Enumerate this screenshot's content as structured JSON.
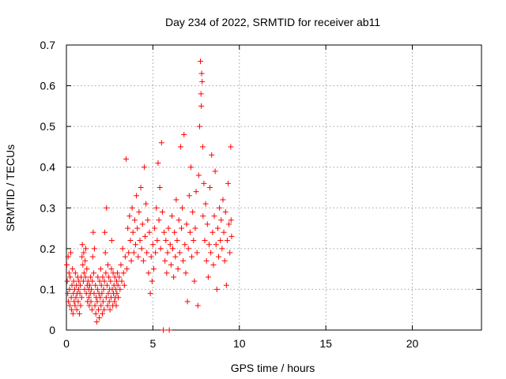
{
  "chart_data": {
    "type": "scatter",
    "title": "Day 234 of 2022, SRMTID for receiver ab11",
    "xlabel": "GPS time / hours",
    "ylabel": "SRMTID / TECUs",
    "xlim": [
      0,
      24
    ],
    "ylim": [
      0,
      0.7
    ],
    "xticks": [
      0,
      5,
      10,
      15,
      20
    ],
    "yticks": [
      0,
      0.1,
      0.2,
      0.3,
      0.4,
      0.5,
      0.6,
      0.7
    ],
    "grid": true,
    "series": [
      {
        "name": "SRMTID",
        "color": "#ff0000",
        "marker": "plus",
        "points": [
          [
            0.02,
            0.16
          ],
          [
            0.05,
            0.12
          ],
          [
            0.08,
            0.09
          ],
          [
            0.1,
            0.18
          ],
          [
            0.12,
            0.07
          ],
          [
            0.15,
            0.14
          ],
          [
            0.18,
            0.1
          ],
          [
            0.2,
            0.06
          ],
          [
            0.22,
            0.13
          ],
          [
            0.25,
            0.19
          ],
          [
            0.28,
            0.08
          ],
          [
            0.3,
            0.05
          ],
          [
            0.32,
            0.11
          ],
          [
            0.35,
            0.15
          ],
          [
            0.38,
            0.04
          ],
          [
            0.4,
            0.09
          ],
          [
            0.42,
            0.12
          ],
          [
            0.45,
            0.07
          ],
          [
            0.48,
            0.1
          ],
          [
            0.5,
            0.06
          ],
          [
            0.52,
            0.14
          ],
          [
            0.55,
            0.08
          ],
          [
            0.58,
            0.11
          ],
          [
            0.6,
            0.05
          ],
          [
            0.62,
            0.09
          ],
          [
            0.65,
            0.13
          ],
          [
            0.68,
            0.07
          ],
          [
            0.7,
            0.1
          ],
          [
            0.72,
            0.12
          ],
          [
            0.75,
            0.04
          ],
          [
            0.78,
            0.09
          ],
          [
            0.8,
            0.11
          ],
          [
            0.82,
            0.06
          ],
          [
            0.85,
            0.13
          ],
          [
            0.88,
            0.08
          ],
          [
            0.9,
            0.18
          ],
          [
            0.92,
            0.21
          ],
          [
            0.95,
            0.16
          ],
          [
            0.98,
            0.12
          ],
          [
            1.0,
            0.19
          ],
          [
            1.02,
            0.14
          ],
          [
            1.05,
            0.1
          ],
          [
            1.08,
            0.17
          ],
          [
            1.1,
            0.13
          ],
          [
            1.12,
            0.2
          ],
          [
            1.15,
            0.09
          ],
          [
            1.18,
            0.15
          ],
          [
            1.2,
            0.11
          ],
          [
            1.22,
            0.07
          ],
          [
            1.25,
            0.12
          ],
          [
            1.28,
            0.1
          ],
          [
            1.3,
            0.08
          ],
          [
            1.32,
            0.06
          ],
          [
            1.35,
            0.11
          ],
          [
            1.38,
            0.09
          ],
          [
            1.4,
            0.13
          ],
          [
            1.42,
            0.07
          ],
          [
            1.45,
            0.1
          ],
          [
            1.48,
            0.05
          ],
          [
            1.5,
            0.12
          ],
          [
            1.52,
            0.18
          ],
          [
            1.55,
            0.24
          ],
          [
            1.58,
            0.14
          ],
          [
            1.6,
            0.09
          ],
          [
            1.62,
            0.2
          ],
          [
            1.65,
            0.06
          ],
          [
            1.68,
            0.11
          ],
          [
            1.7,
            0.04
          ],
          [
            1.72,
            0.08
          ],
          [
            1.75,
            0.02
          ],
          [
            1.78,
            0.07
          ],
          [
            1.8,
            0.1
          ],
          [
            1.82,
            0.13
          ],
          [
            1.85,
            0.05
          ],
          [
            1.88,
            0.09
          ],
          [
            1.9,
            0.03
          ],
          [
            1.92,
            0.12
          ],
          [
            1.95,
            0.08
          ],
          [
            1.98,
            0.15
          ],
          [
            2.0,
            0.06
          ],
          [
            2.02,
            0.11
          ],
          [
            2.05,
            0.09
          ],
          [
            2.08,
            0.04
          ],
          [
            2.1,
            0.13
          ],
          [
            2.12,
            0.07
          ],
          [
            2.15,
            0.1
          ],
          [
            2.18,
            0.05
          ],
          [
            2.2,
            0.12
          ],
          [
            2.22,
            0.24
          ],
          [
            2.25,
            0.19
          ],
          [
            2.28,
            0.14
          ],
          [
            2.3,
            0.08
          ],
          [
            2.32,
            0.3
          ],
          [
            2.35,
            0.11
          ],
          [
            2.38,
            0.06
          ],
          [
            2.4,
            0.16
          ],
          [
            2.42,
            0.09
          ],
          [
            2.45,
            0.13
          ],
          [
            2.48,
            0.07
          ],
          [
            2.5,
            0.1
          ],
          [
            2.52,
            0.05
          ],
          [
            2.55,
            0.12
          ],
          [
            2.58,
            0.08
          ],
          [
            2.6,
            0.15
          ],
          [
            2.62,
            0.22
          ],
          [
            2.65,
            0.1
          ],
          [
            2.68,
            0.06
          ],
          [
            2.7,
            0.14
          ],
          [
            2.72,
            0.09
          ],
          [
            2.75,
            0.11
          ],
          [
            2.78,
            0.07
          ],
          [
            2.8,
            0.13
          ],
          [
            2.82,
            0.08
          ],
          [
            2.85,
            0.1
          ],
          [
            2.88,
            0.06
          ],
          [
            2.9,
            0.12
          ],
          [
            2.92,
            0.09
          ],
          [
            2.95,
            0.14
          ],
          [
            2.98,
            0.11
          ],
          [
            3.0,
            0.08
          ],
          [
            3.05,
            0.13
          ],
          [
            3.1,
            0.1
          ],
          [
            3.15,
            0.16
          ],
          [
            3.2,
            0.12
          ],
          [
            3.25,
            0.2
          ],
          [
            3.3,
            0.14
          ],
          [
            3.35,
            0.11
          ],
          [
            3.4,
            0.18
          ],
          [
            3.45,
            0.42
          ],
          [
            3.5,
            0.15
          ],
          [
            3.55,
            0.25
          ],
          [
            3.6,
            0.19
          ],
          [
            3.65,
            0.28
          ],
          [
            3.7,
            0.22
          ],
          [
            3.75,
            0.17
          ],
          [
            3.8,
            0.3
          ],
          [
            3.85,
            0.24
          ],
          [
            3.9,
            0.19
          ],
          [
            3.95,
            0.27
          ],
          [
            4.0,
            0.21
          ],
          [
            4.05,
            0.33
          ],
          [
            4.1,
            0.25
          ],
          [
            4.15,
            0.18
          ],
          [
            4.2,
            0.29
          ],
          [
            4.25,
            0.22
          ],
          [
            4.3,
            0.35
          ],
          [
            4.35,
            0.2
          ],
          [
            4.4,
            0.26
          ],
          [
            4.45,
            0.17
          ],
          [
            4.5,
            0.4
          ],
          [
            4.55,
            0.23
          ],
          [
            4.6,
            0.31
          ],
          [
            4.65,
            0.19
          ],
          [
            4.7,
            0.27
          ],
          [
            4.75,
            0.14
          ],
          [
            4.8,
            0.24
          ],
          [
            4.85,
            0.09
          ],
          [
            4.9,
            0.18
          ],
          [
            4.95,
            0.12
          ],
          [
            5.0,
            0.21
          ],
          [
            5.05,
            0.15
          ],
          [
            5.1,
            0.25
          ],
          [
            5.15,
            0.19
          ],
          [
            5.2,
            0.3
          ],
          [
            5.25,
            0.22
          ],
          [
            5.3,
            0.41
          ],
          [
            5.35,
            0.27
          ],
          [
            5.4,
            0.35
          ],
          [
            5.45,
            0.2
          ],
          [
            5.5,
            0.46
          ],
          [
            5.55,
            0.29
          ],
          [
            5.6,
            0.0
          ],
          [
            5.65,
            0.24
          ],
          [
            5.7,
            0.17
          ],
          [
            5.75,
            0.22
          ],
          [
            5.8,
            0.14
          ],
          [
            5.85,
            0.19
          ],
          [
            5.9,
            0.25
          ],
          [
            5.95,
            0.0
          ],
          [
            6.0,
            0.21
          ],
          [
            6.05,
            0.16
          ],
          [
            6.1,
            0.28
          ],
          [
            6.15,
            0.2
          ],
          [
            6.2,
            0.13
          ],
          [
            6.25,
            0.24
          ],
          [
            6.3,
            0.18
          ],
          [
            6.35,
            0.32
          ],
          [
            6.4,
            0.22
          ],
          [
            6.45,
            0.15
          ],
          [
            6.5,
            0.27
          ],
          [
            6.55,
            0.19
          ],
          [
            6.6,
            0.45
          ],
          [
            6.65,
            0.25
          ],
          [
            6.7,
            0.3
          ],
          [
            6.75,
            0.17
          ],
          [
            6.8,
            0.48
          ],
          [
            6.85,
            0.21
          ],
          [
            6.9,
            0.14
          ],
          [
            6.95,
            0.26
          ],
          [
            7.0,
            0.07
          ],
          [
            7.05,
            0.2
          ],
          [
            7.1,
            0.33
          ],
          [
            7.15,
            0.24
          ],
          [
            7.2,
            0.4
          ],
          [
            7.25,
            0.18
          ],
          [
            7.3,
            0.29
          ],
          [
            7.35,
            0.22
          ],
          [
            7.4,
            0.12
          ],
          [
            7.45,
            0.25
          ],
          [
            7.5,
            0.34
          ],
          [
            7.55,
            0.19
          ],
          [
            7.6,
            0.06
          ],
          [
            7.65,
            0.38
          ],
          [
            7.7,
            0.5
          ],
          [
            7.75,
            0.66
          ],
          [
            7.78,
            0.58
          ],
          [
            7.8,
            0.55
          ],
          [
            7.82,
            0.63
          ],
          [
            7.85,
            0.61
          ],
          [
            7.88,
            0.45
          ],
          [
            7.9,
            0.28
          ],
          [
            7.95,
            0.36
          ],
          [
            8.0,
            0.22
          ],
          [
            8.05,
            0.31
          ],
          [
            8.1,
            0.17
          ],
          [
            8.15,
            0.26
          ],
          [
            8.2,
            0.13
          ],
          [
            8.25,
            0.21
          ],
          [
            8.3,
            0.35
          ],
          [
            8.35,
            0.19
          ],
          [
            8.4,
            0.43
          ],
          [
            8.45,
            0.24
          ],
          [
            8.5,
            0.16
          ],
          [
            8.55,
            0.28
          ],
          [
            8.6,
            0.39
          ],
          [
            8.65,
            0.21
          ],
          [
            8.7,
            0.1
          ],
          [
            8.75,
            0.25
          ],
          [
            8.8,
            0.18
          ],
          [
            8.85,
            0.3
          ],
          [
            8.9,
            0.22
          ],
          [
            8.95,
            0.27
          ],
          [
            9.0,
            0.2
          ],
          [
            9.05,
            0.32
          ],
          [
            9.1,
            0.24
          ],
          [
            9.15,
            0.17
          ],
          [
            9.2,
            0.29
          ],
          [
            9.25,
            0.11
          ],
          [
            9.3,
            0.22
          ],
          [
            9.35,
            0.36
          ],
          [
            9.4,
            0.26
          ],
          [
            9.45,
            0.19
          ],
          [
            9.5,
            0.45
          ],
          [
            9.52,
            0.27
          ],
          [
            9.55,
            0.23
          ]
        ]
      }
    ]
  }
}
